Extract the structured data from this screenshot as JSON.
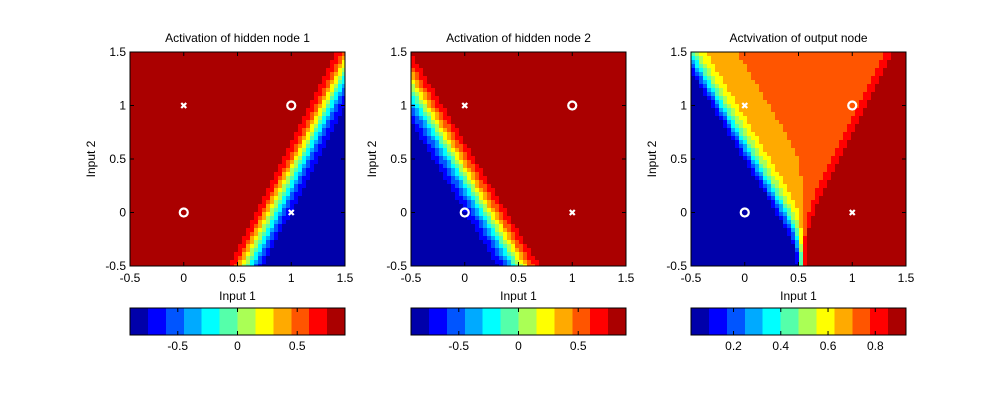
{
  "chart_data": [
    {
      "type": "heatmap",
      "title": "Activation of hidden node 1",
      "xlabel": "Input 1",
      "ylabel": "Input 2",
      "xlim": [
        -0.5,
        1.5
      ],
      "ylim": [
        -0.5,
        1.5
      ],
      "xticks": [
        "-0.5",
        "0",
        "0.5",
        "1",
        "1.5"
      ],
      "yticks": [
        "-0.5",
        "0",
        "0.5",
        "1",
        "1.5"
      ],
      "colormap": "jet",
      "clim": [
        -0.9,
        0.9
      ],
      "contour_levels": 12,
      "colorbar_ticks": [
        "-0.5",
        "0",
        "0.5"
      ],
      "colorbar_tick_values": [
        -0.5,
        0,
        0.5
      ],
      "field": {
        "kind": "tanh",
        "w1": -6,
        "w2": 3,
        "b": 5
      },
      "points": [
        {
          "x": 0,
          "y": 0,
          "marker": "o"
        },
        {
          "x": 1,
          "y": 1,
          "marker": "o"
        },
        {
          "x": 0,
          "y": 1,
          "marker": "x"
        },
        {
          "x": 1,
          "y": 0,
          "marker": "x"
        }
      ]
    },
    {
      "type": "heatmap",
      "title": "Activation of hidden node 2",
      "xlabel": "Input 1",
      "ylabel": "Input 2",
      "xlim": [
        -0.5,
        1.5
      ],
      "ylim": [
        -0.5,
        1.5
      ],
      "xticks": [
        "-0.5",
        "0",
        "0.5",
        "1",
        "1.5"
      ],
      "yticks": [
        "-0.5",
        "0",
        "0.5",
        "1",
        "1.5"
      ],
      "colormap": "jet",
      "clim": [
        -0.9,
        0.9
      ],
      "contour_levels": 12,
      "colorbar_ticks": [
        "-0.5",
        "0",
        "0.5"
      ],
      "colorbar_tick_values": [
        -0.5,
        0,
        0.5
      ],
      "field": {
        "kind": "tanh",
        "w1": 5,
        "w2": 3,
        "b": -1
      },
      "points": [
        {
          "x": 0,
          "y": 0,
          "marker": "o"
        },
        {
          "x": 1,
          "y": 1,
          "marker": "o"
        },
        {
          "x": 0,
          "y": 1,
          "marker": "x"
        },
        {
          "x": 1,
          "y": 0,
          "marker": "x"
        }
      ]
    },
    {
      "type": "heatmap",
      "title": "Actvivation of output node",
      "xlabel": "Input 1",
      "ylabel": "Input 2",
      "xlim": [
        -0.5,
        1.5
      ],
      "ylim": [
        -0.5,
        1.5
      ],
      "xticks": [
        "-0.5",
        "0",
        "0.5",
        "1",
        "1.5"
      ],
      "yticks": [
        "-0.5",
        "0",
        "0.5",
        "1",
        "1.5"
      ],
      "colormap": "jet",
      "clim": [
        0.02,
        0.93
      ],
      "contour_levels": 12,
      "colorbar_ticks": [
        "0.2",
        "0.4",
        "0.6",
        "0.8"
      ],
      "colorbar_tick_values": [
        0.2,
        0.4,
        0.6,
        0.8
      ],
      "field": {
        "kind": "output",
        "v1": -2.5,
        "v2": 2.5,
        "c": 0.4
      },
      "points": [
        {
          "x": 0,
          "y": 0,
          "marker": "o"
        },
        {
          "x": 1,
          "y": 1,
          "marker": "o"
        },
        {
          "x": 0,
          "y": 1,
          "marker": "x"
        },
        {
          "x": 1,
          "y": 0,
          "marker": "x"
        }
      ]
    }
  ]
}
